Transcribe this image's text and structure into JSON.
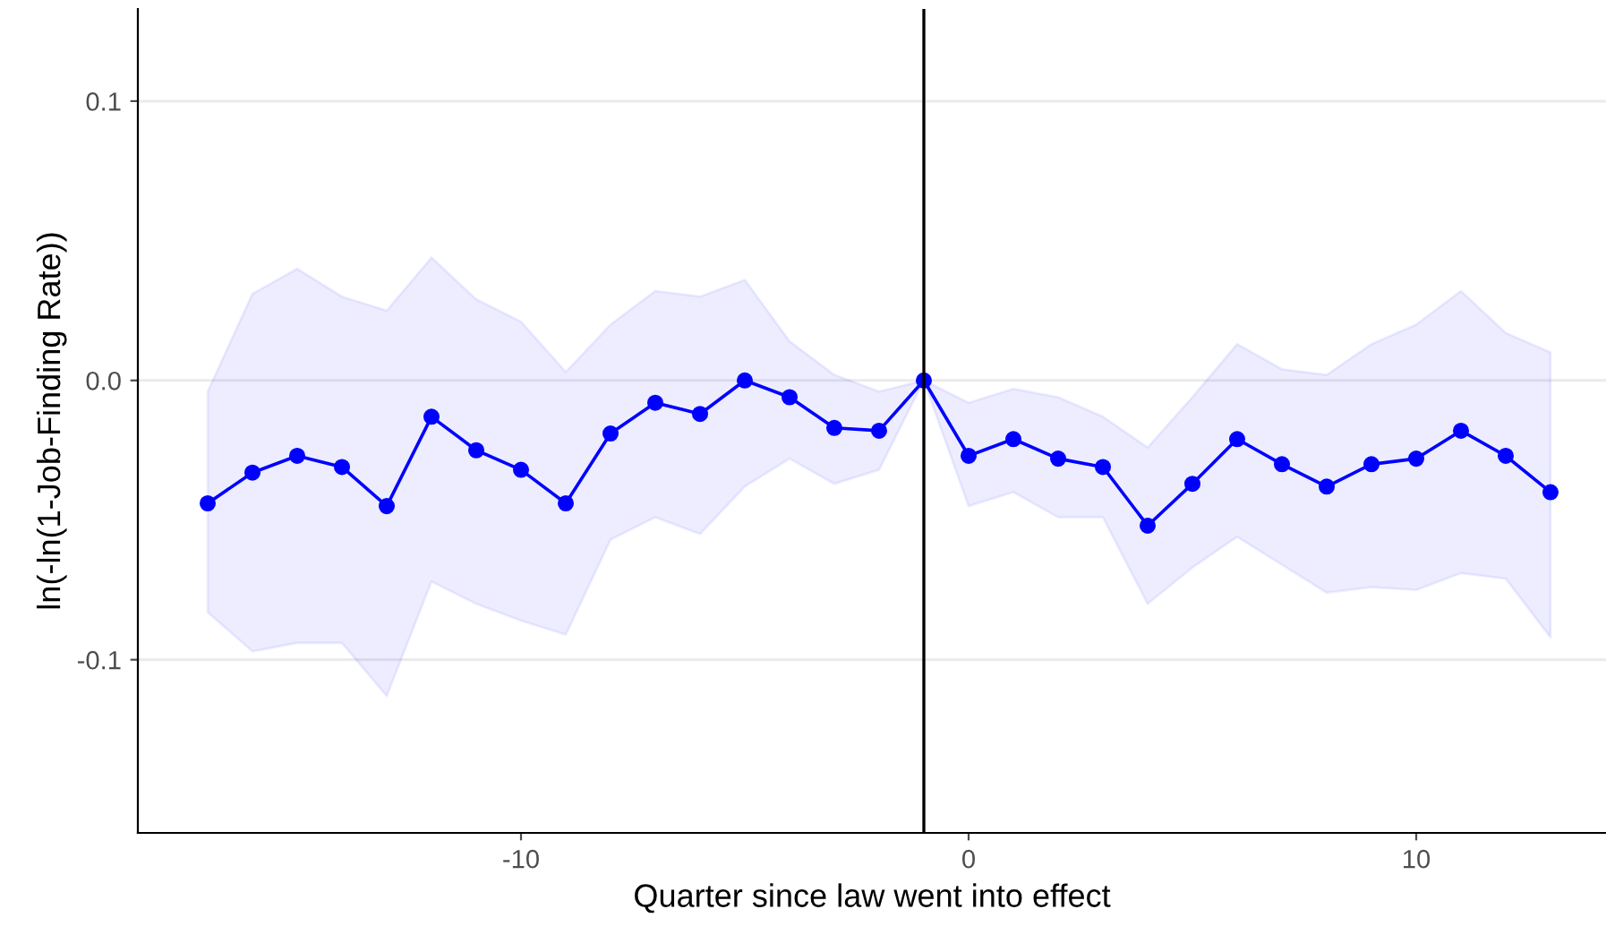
{
  "chart_data": {
    "type": "line",
    "xlabel": "Quarter since law went into effect",
    "ylabel": "ln(-ln(1-Job-Finding Rate))",
    "x": [
      -17,
      -16,
      -15,
      -14,
      -13,
      -12,
      -11,
      -10,
      -9,
      -8,
      -7,
      -6,
      -5,
      -4,
      -3,
      -2,
      -1,
      0,
      1,
      2,
      3,
      4,
      5,
      6,
      7,
      8,
      9,
      10,
      11,
      12,
      13
    ],
    "series": [
      {
        "color": "#0000ff",
        "values": [
          -0.044,
          -0.033,
          -0.027,
          -0.031,
          -0.045,
          -0.013,
          -0.025,
          -0.032,
          -0.044,
          -0.019,
          -0.008,
          -0.012,
          0.0,
          -0.006,
          -0.017,
          -0.018,
          0.0,
          -0.027,
          -0.021,
          -0.028,
          -0.031,
          -0.052,
          -0.037,
          -0.021,
          -0.03,
          -0.038,
          -0.03,
          -0.028,
          -0.018,
          -0.027,
          -0.04
        ],
        "upper": [
          -0.004,
          0.031,
          0.04,
          0.03,
          0.025,
          0.044,
          0.029,
          0.021,
          0.003,
          0.02,
          0.032,
          0.03,
          0.036,
          0.014,
          0.002,
          -0.004,
          0.0,
          -0.008,
          -0.003,
          -0.006,
          -0.013,
          -0.024,
          -0.006,
          0.013,
          0.004,
          0.002,
          0.013,
          0.02,
          0.032,
          0.017,
          0.01
        ],
        "lower": [
          -0.083,
          -0.097,
          -0.094,
          -0.094,
          -0.113,
          -0.072,
          -0.08,
          -0.086,
          -0.091,
          -0.057,
          -0.049,
          -0.055,
          -0.038,
          -0.028,
          -0.037,
          -0.032,
          0.0,
          -0.045,
          -0.04,
          -0.049,
          -0.049,
          -0.08,
          -0.067,
          -0.056,
          -0.066,
          -0.076,
          -0.074,
          -0.075,
          -0.069,
          -0.071,
          -0.092
        ]
      }
    ],
    "xlim": [
      -18.56,
      14.24
    ],
    "ylim": [
      -0.162,
      0.133
    ],
    "xticks": [
      -10,
      0,
      10
    ],
    "yticks": [
      {
        "value": -0.1,
        "label": "-0.1"
      },
      {
        "value": 0,
        "label": "0.0"
      },
      {
        "value": 0.1,
        "label": "0.1"
      }
    ],
    "ref_lines": [
      {
        "axis": "x",
        "value": -1,
        "color": "#000000"
      }
    ],
    "grid": "y",
    "marker": "circle",
    "line_style": "solid"
  }
}
